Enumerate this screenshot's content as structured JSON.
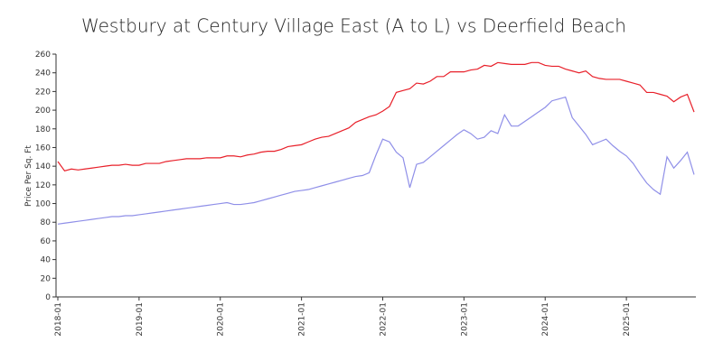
{
  "chart_data": {
    "type": "line",
    "title": "Westbury at Century Village East (A to L) vs Deerfield Beach",
    "y_label": "Price Per Sq. Ft",
    "x": [
      "2018-01",
      "2018-02",
      "2018-03",
      "2018-04",
      "2018-05",
      "2018-06",
      "2018-07",
      "2018-08",
      "2018-09",
      "2018-10",
      "2018-11",
      "2018-12",
      "2019-01",
      "2019-02",
      "2019-03",
      "2019-04",
      "2019-05",
      "2019-06",
      "2019-07",
      "2019-08",
      "2019-09",
      "2019-10",
      "2019-11",
      "2019-12",
      "2020-01",
      "2020-02",
      "2020-03",
      "2020-04",
      "2020-05",
      "2020-06",
      "2020-07",
      "2020-08",
      "2020-09",
      "2020-10",
      "2020-11",
      "2020-12",
      "2021-01",
      "2021-02",
      "2021-03",
      "2021-04",
      "2021-05",
      "2021-06",
      "2021-07",
      "2021-08",
      "2021-09",
      "2021-10",
      "2021-11",
      "2021-12",
      "2022-01",
      "2022-02",
      "2022-03",
      "2022-04",
      "2022-05",
      "2022-06",
      "2022-07",
      "2022-08",
      "2022-09",
      "2022-10",
      "2022-11",
      "2022-12",
      "2023-01",
      "2023-02",
      "2023-03",
      "2023-04",
      "2023-05",
      "2023-06",
      "2023-07",
      "2023-08",
      "2023-09",
      "2023-10",
      "2023-11",
      "2023-12",
      "2024-01",
      "2024-02",
      "2024-03",
      "2024-04",
      "2024-05",
      "2024-06",
      "2024-07",
      "2024-08",
      "2024-09",
      "2024-10",
      "2024-11",
      "2024-12",
      "2025-01",
      "2025-02",
      "2025-03",
      "2025-04",
      "2025-05",
      "2025-06",
      "2025-07",
      "2025-08",
      "2025-09",
      "2025-10",
      "2025-11"
    ],
    "series": [
      {
        "color": "#e8202a",
        "values": [
          145,
          135,
          137,
          136,
          137,
          138,
          139,
          140,
          141,
          141,
          142,
          141,
          141,
          143,
          143,
          143,
          145,
          146,
          147,
          148,
          148,
          148,
          149,
          149,
          149,
          151,
          151,
          150,
          152,
          153,
          155,
          156,
          156,
          158,
          161,
          162,
          163,
          166,
          169,
          171,
          172,
          175,
          178,
          181,
          187,
          190,
          193,
          195,
          199,
          204,
          219,
          221,
          223,
          229,
          228,
          231,
          236,
          236,
          241,
          241,
          241,
          243,
          244,
          248,
          247,
          251,
          250,
          249,
          249,
          249,
          251,
          251,
          248,
          247,
          247,
          244,
          242,
          240,
          242,
          236,
          234,
          233,
          233,
          233,
          231,
          229,
          227,
          219,
          219,
          217,
          215,
          209,
          214,
          217,
          198
        ]
      },
      {
        "color": "#8f8fe8",
        "values": [
          78,
          79,
          80,
          81,
          82,
          83,
          84,
          85,
          86,
          86,
          87,
          87,
          88,
          89,
          90,
          91,
          92,
          93,
          94,
          95,
          96,
          97,
          98,
          99,
          100,
          101,
          99,
          99,
          100,
          101,
          103,
          105,
          107,
          109,
          111,
          113,
          114,
          115,
          117,
          119,
          121,
          123,
          125,
          127,
          129,
          130,
          133,
          152,
          169,
          166,
          155,
          149,
          117,
          142,
          144,
          150,
          156,
          162,
          168,
          174,
          179,
          175,
          169,
          171,
          178,
          175,
          195,
          183,
          183,
          188,
          193,
          198,
          203,
          210,
          212,
          214,
          192,
          183,
          174,
          163,
          166,
          169,
          162,
          156,
          151,
          143,
          132,
          122,
          115,
          110,
          150,
          138,
          146,
          155,
          131
        ]
      }
    ],
    "xlim": [
      "2018-01",
      "2025-11"
    ],
    "xticks": [
      "2018-01",
      "2019-01",
      "2020-01",
      "2021-01",
      "2022-01",
      "2023-01",
      "2024-01",
      "2025-01"
    ],
    "ylim": [
      0,
      260
    ],
    "yticks": [
      0,
      20,
      40,
      60,
      80,
      100,
      120,
      140,
      160,
      180,
      200,
      220,
      240,
      260
    ],
    "grid": false
  }
}
